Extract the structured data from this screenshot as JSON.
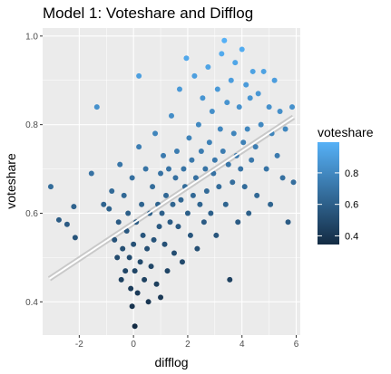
{
  "chart_data": {
    "type": "scatter",
    "title": "Model 1: Voteshare and Difflog",
    "xlabel": "difflog",
    "ylabel": "voteshare",
    "xlim": [
      -3.35,
      6.15
    ],
    "ylim": [
      0.325,
      1.018
    ],
    "x_ticks": [
      -2,
      0,
      2,
      4,
      6
    ],
    "x_tick_labels": [
      "-2",
      "0",
      "2",
      "4",
      "6"
    ],
    "y_ticks": [
      0.4,
      0.6,
      0.8,
      1.0
    ],
    "y_tick_labels": [
      "0.4",
      "0.6",
      "0.8",
      "1.0"
    ],
    "grid": true,
    "fit_line": {
      "type": "linear",
      "start": [
        -3.1,
        0.452
      ],
      "end": [
        5.9,
        0.817
      ]
    },
    "legend": {
      "title": "voteshare",
      "placement": "right",
      "type": "colorbar",
      "range": [
        0.345,
        0.995
      ],
      "ticks": [
        0.4,
        0.6,
        0.8
      ],
      "tick_labels": [
        "0.4",
        "0.6",
        "0.8"
      ],
      "color_low": "#132B43",
      "color_high": "#56B1F7"
    },
    "colors": {
      "panel_background": "#EBEBEB",
      "grid_major": "#FFFFFF",
      "fit_line": "#FFFFFF",
      "fit_ribbon": "#C9C9C9"
    },
    "points": [
      [
        -3.05,
        0.66
      ],
      [
        -2.75,
        0.585
      ],
      [
        -2.45,
        0.575
      ],
      [
        -2.2,
        0.615
      ],
      [
        -2.15,
        0.545
      ],
      [
        -1.1,
        0.62
      ],
      [
        -1.35,
        0.84
      ],
      [
        -1.55,
        0.69
      ],
      [
        -0.9,
        0.61
      ],
      [
        -0.8,
        0.65
      ],
      [
        -0.7,
        0.54
      ],
      [
        -0.6,
        0.5
      ],
      [
        -0.55,
        0.58
      ],
      [
        -0.5,
        0.71
      ],
      [
        -0.45,
        0.45
      ],
      [
        -0.4,
        0.52
      ],
      [
        -0.35,
        0.64
      ],
      [
        -0.3,
        0.47
      ],
      [
        -0.25,
        0.56
      ],
      [
        -0.2,
        0.6
      ],
      [
        -0.15,
        0.5
      ],
      [
        -0.1,
        0.43
      ],
      [
        -0.05,
        0.68
      ],
      [
        -0.05,
        0.39
      ],
      [
        0.0,
        0.53
      ],
      [
        0.05,
        0.47
      ],
      [
        0.05,
        0.345
      ],
      [
        0.1,
        0.58
      ],
      [
        0.15,
        0.42
      ],
      [
        0.2,
        0.75
      ],
      [
        0.2,
        0.91
      ],
      [
        0.25,
        0.49
      ],
      [
        0.3,
        0.62
      ],
      [
        0.35,
        0.55
      ],
      [
        0.4,
        0.45
      ],
      [
        0.45,
        0.7
      ],
      [
        0.5,
        0.52
      ],
      [
        0.55,
        0.4
      ],
      [
        0.6,
        0.6
      ],
      [
        0.65,
        0.48
      ],
      [
        0.7,
        0.66
      ],
      [
        0.75,
        0.54
      ],
      [
        0.8,
        0.78
      ],
      [
        0.85,
        0.44
      ],
      [
        0.9,
        0.62
      ],
      [
        0.95,
        0.57
      ],
      [
        1.0,
        0.69
      ],
      [
        1.0,
        0.41
      ],
      [
        1.05,
        0.6
      ],
      [
        1.1,
        0.73
      ],
      [
        1.15,
        0.53
      ],
      [
        1.2,
        0.64
      ],
      [
        1.25,
        0.47
      ],
      [
        1.3,
        0.7
      ],
      [
        1.35,
        0.58
      ],
      [
        1.4,
        0.82
      ],
      [
        1.45,
        0.62
      ],
      [
        1.5,
        0.51
      ],
      [
        1.55,
        0.68
      ],
      [
        1.6,
        0.74
      ],
      [
        1.65,
        0.57
      ],
      [
        1.7,
        0.88
      ],
      [
        1.75,
        0.63
      ],
      [
        1.8,
        0.49
      ],
      [
        1.85,
        0.7
      ],
      [
        1.9,
        0.66
      ],
      [
        1.95,
        0.95
      ],
      [
        2.0,
        0.6
      ],
      [
        2.05,
        0.77
      ],
      [
        2.1,
        0.55
      ],
      [
        2.15,
        0.72
      ],
      [
        2.2,
        0.64
      ],
      [
        2.25,
        0.91
      ],
      [
        2.3,
        0.68
      ],
      [
        2.35,
        0.52
      ],
      [
        2.4,
        0.8
      ],
      [
        2.45,
        0.62
      ],
      [
        2.5,
        0.74
      ],
      [
        2.55,
        0.86
      ],
      [
        2.6,
        0.58
      ],
      [
        2.65,
        0.7
      ],
      [
        2.7,
        0.65
      ],
      [
        2.75,
        0.93
      ],
      [
        2.8,
        0.76
      ],
      [
        2.85,
        0.6
      ],
      [
        2.9,
        0.83
      ],
      [
        2.95,
        0.69
      ],
      [
        3.0,
        0.72
      ],
      [
        3.05,
        0.55
      ],
      [
        3.1,
        0.88
      ],
      [
        3.15,
        0.66
      ],
      [
        3.2,
        0.79
      ],
      [
        3.25,
        0.96
      ],
      [
        3.3,
        0.74
      ],
      [
        3.35,
        0.99
      ],
      [
        3.4,
        0.62
      ],
      [
        3.45,
        0.85
      ],
      [
        3.5,
        0.71
      ],
      [
        3.55,
        0.45
      ],
      [
        3.6,
        0.9
      ],
      [
        3.65,
        0.67
      ],
      [
        3.7,
        0.78
      ],
      [
        3.75,
        0.94
      ],
      [
        3.8,
        0.73
      ],
      [
        3.85,
        0.58
      ],
      [
        3.9,
        0.84
      ],
      [
        3.95,
        0.7
      ],
      [
        4.0,
        0.97
      ],
      [
        4.05,
        0.76
      ],
      [
        4.1,
        0.66
      ],
      [
        4.15,
        0.89
      ],
      [
        4.2,
        0.79
      ],
      [
        4.25,
        0.6
      ],
      [
        4.3,
        0.86
      ],
      [
        4.35,
        0.72
      ],
      [
        4.4,
        0.92
      ],
      [
        4.5,
        0.75
      ],
      [
        4.55,
        0.64
      ],
      [
        4.6,
        0.87
      ],
      [
        4.7,
        0.8
      ],
      [
        4.8,
        0.92
      ],
      [
        4.9,
        0.7
      ],
      [
        5.0,
        0.84
      ],
      [
        5.05,
        0.62
      ],
      [
        5.1,
        0.78
      ],
      [
        5.2,
        0.9
      ],
      [
        5.3,
        0.73
      ],
      [
        5.4,
        0.83
      ],
      [
        5.5,
        0.68
      ],
      [
        5.6,
        0.79
      ],
      [
        5.7,
        0.58
      ],
      [
        5.85,
        0.84
      ],
      [
        5.9,
        0.67
      ]
    ]
  }
}
